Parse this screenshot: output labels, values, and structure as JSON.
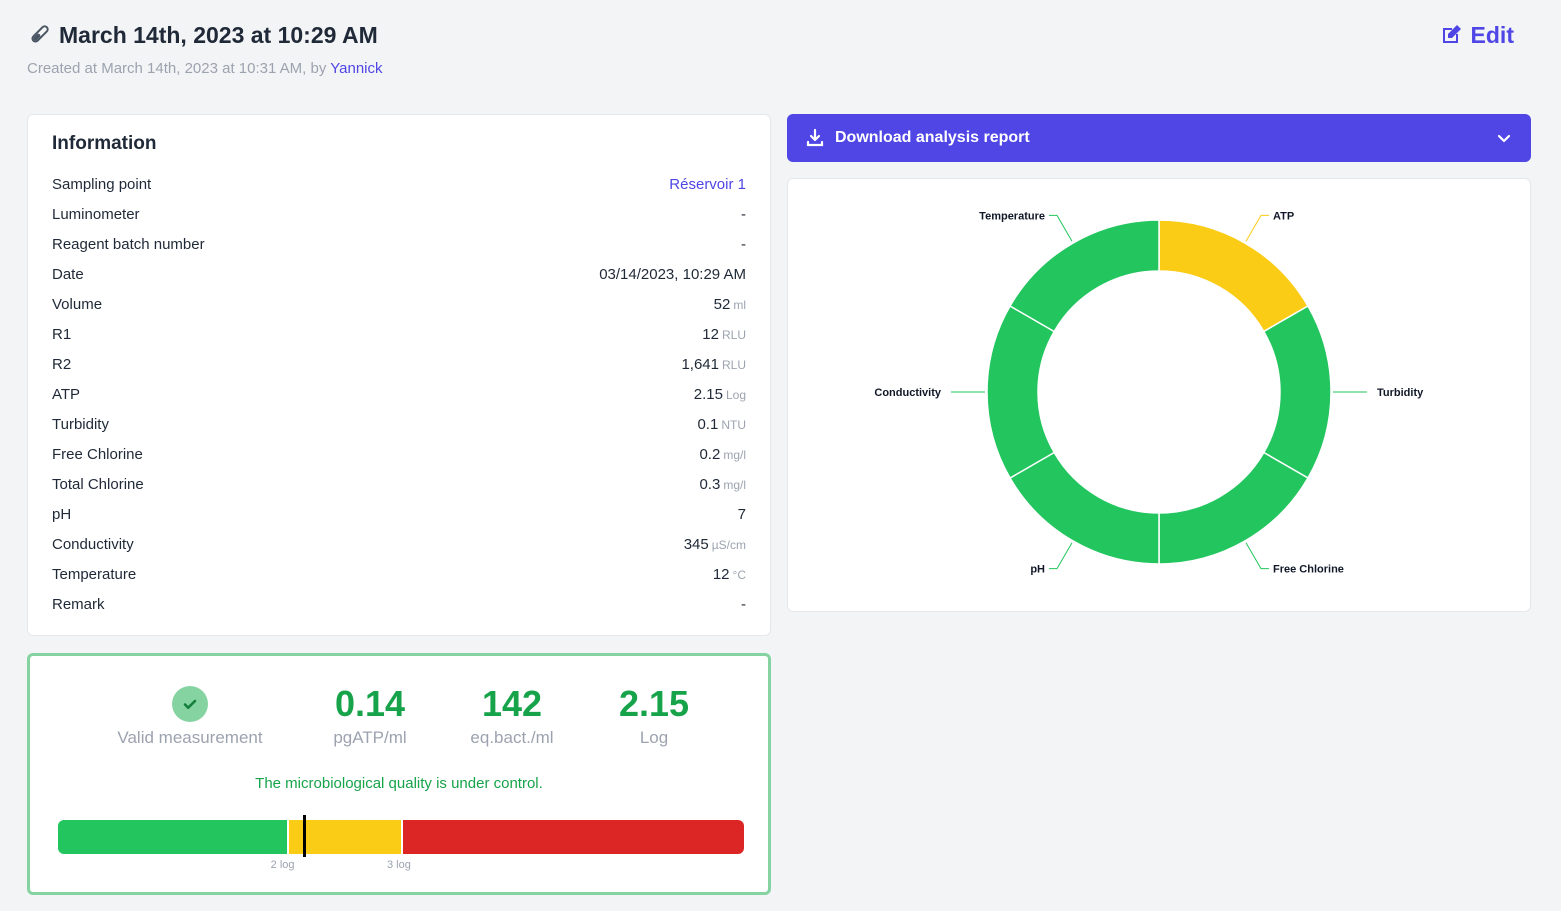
{
  "header": {
    "title": "March 14th, 2023 at 10:29 AM",
    "created_prefix": "Created at March 14th, 2023 at 10:31 AM, by",
    "author": "Yannick",
    "edit_label": "Edit",
    "title_icon": "test-tube-icon",
    "edit_icon": "edit-icon"
  },
  "information": {
    "title": "Information",
    "rows": [
      {
        "label": "Sampling point",
        "value": "Réservoir 1",
        "unit": "",
        "link": true
      },
      {
        "label": "Luminometer",
        "value": "-",
        "unit": ""
      },
      {
        "label": "Reagent batch number",
        "value": "-",
        "unit": ""
      },
      {
        "label": "Date",
        "value": "03/14/2023, 10:29 AM",
        "unit": ""
      },
      {
        "label": "Volume",
        "value": "52",
        "unit": "ml"
      },
      {
        "label": "R1",
        "value": "12",
        "unit": "RLU"
      },
      {
        "label": "R2",
        "value": "1,641",
        "unit": "RLU"
      },
      {
        "label": "ATP",
        "value": "2.15",
        "unit": "Log"
      },
      {
        "label": "Turbidity",
        "value": "0.1",
        "unit": "NTU"
      },
      {
        "label": "Free Chlorine",
        "value": "0.2",
        "unit": "mg/l"
      },
      {
        "label": "Total Chlorine",
        "value": "0.3",
        "unit": "mg/l"
      },
      {
        "label": "pH",
        "value": "7",
        "unit": ""
      },
      {
        "label": "Conductivity",
        "value": "345",
        "unit": "µS/cm"
      },
      {
        "label": "Temperature",
        "value": "12",
        "unit": "°C"
      },
      {
        "label": "Remark",
        "value": "-",
        "unit": ""
      }
    ]
  },
  "result": {
    "status_label": "Valid measurement",
    "status_icon": "check-circle-icon",
    "metrics": [
      {
        "value": "0.14",
        "label": "pgATP/ml"
      },
      {
        "value": "142",
        "label": "eq.bact./ml"
      },
      {
        "value": "2.15",
        "label": "Log"
      }
    ],
    "quality_message": "The microbiological quality is under control.",
    "scale": {
      "min_log": 0,
      "max_log": 6,
      "current_log": 2.15,
      "thresholds": [
        {
          "log": 2,
          "label": "2 log"
        },
        {
          "log": 3,
          "label": "3 log"
        }
      ]
    }
  },
  "download": {
    "label": "Download analysis report",
    "icon": "download-icon",
    "chevron": "chevron-down-icon"
  },
  "chart_data": {
    "type": "pie",
    "donut": true,
    "categories": [
      "ATP",
      "Turbidity",
      "Free Chlorine",
      "pH",
      "Conductivity",
      "Temperature"
    ],
    "values": [
      1,
      1,
      1,
      1,
      1,
      1
    ],
    "status": [
      "warning",
      "ok",
      "ok",
      "ok",
      "ok",
      "ok"
    ]
  },
  "colors": {
    "accent": "#4f46e5",
    "ok": "#22c55e",
    "warning": "#facc15",
    "danger": "#dc2626",
    "success_text": "#16a34a"
  }
}
